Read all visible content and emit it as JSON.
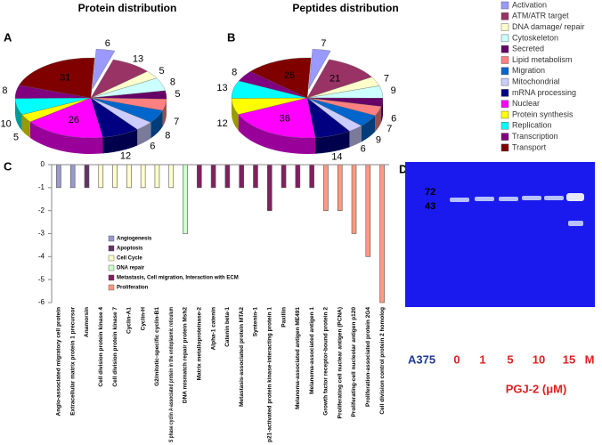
{
  "panels": {
    "a": "A",
    "b": "B",
    "c": "C",
    "d": "D"
  },
  "chart_data": [
    {
      "type": "pie",
      "title": "Protein distribution",
      "categories": [
        "Activation",
        "ATM/ATR target",
        "DNA damage/ repair",
        "Cytoskeleton",
        "Secreted",
        "Lipid metabolism",
        "Migration",
        "Mitochondrial",
        "mRNA processing",
        "Nuclear",
        "Protein synthesis",
        "Replication",
        "Transcription",
        "Transport"
      ],
      "values": [
        6,
        13,
        5,
        8,
        5,
        7,
        8,
        6,
        12,
        26,
        5,
        10,
        8,
        31
      ],
      "colors": [
        "#9999ff",
        "#993366",
        "#ffffcc",
        "#ccffff",
        "#660066",
        "#ff8080",
        "#0066cc",
        "#ccccff",
        "#000080",
        "#ff00ff",
        "#ffff00",
        "#00ffff",
        "#800080",
        "#800000"
      ]
    },
    {
      "type": "pie",
      "title": "Peptides distribution",
      "categories": [
        "Activation",
        "ATM/ATR target",
        "DNA damage/ repair",
        "Cytoskeleton",
        "Secreted",
        "Lipid metabolism",
        "Migration",
        "Mitochondrial",
        "mRNA processing",
        "Nuclear",
        "Protein synthesis",
        "Replication",
        "Transcription",
        "Transport"
      ],
      "values": [
        7,
        21,
        7,
        9,
        6,
        7,
        9,
        6,
        14,
        36,
        12,
        13,
        8,
        26
      ],
      "colors": [
        "#9999ff",
        "#993366",
        "#ffffcc",
        "#ccffff",
        "#660066",
        "#ff8080",
        "#0066cc",
        "#ccccff",
        "#000080",
        "#ff00ff",
        "#ffff00",
        "#00ffff",
        "#800080",
        "#800000"
      ],
      "legend": "right"
    },
    {
      "type": "bar",
      "categories": [
        "Angio-associated migratory cell protein",
        "Extracellular matrix protein 1 precursor",
        "Anamorsin",
        "Cell division protein kinase 4",
        "Cell division protein kinase 7",
        "Cyclin-A1",
        "Cyclin-H",
        "G2/mitotic-specific cyclin-B1",
        "S phase cyclin A-associated protein in the endoplasmic reticulum",
        "DNA mismatch repair protein Msh2",
        "Matrix metalloproteinase-2",
        "Alpha-1 catenin",
        "Catenin beta-1",
        "Metastasis-associated protein MTA2",
        "Syntenin-1",
        "p21-activated protein kinase-interacting protein 1",
        "Paxillin",
        "Melanoma-associated antigen ME491",
        "Melanoma-associated antigen 1",
        "Growth factor receptor-bound protein 2",
        "Proliferating cell nuclear antigen (PCNA)",
        "Proliferating-cell nucleolar antigen p120",
        "Proliferation-associated protein 2G4",
        "Cell division control protein 2 homolog"
      ],
      "values": [
        -1,
        -1,
        -1,
        -1,
        -1,
        -1,
        -1,
        -1,
        -1,
        -3,
        -1,
        -1,
        -1,
        -1,
        -1,
        -2,
        -1,
        -1,
        -1,
        -2,
        -2,
        -3,
        -4,
        -6
      ],
      "group": [
        0,
        0,
        1,
        2,
        2,
        2,
        2,
        2,
        2,
        3,
        4,
        4,
        4,
        4,
        4,
        4,
        4,
        4,
        4,
        5,
        5,
        5,
        5,
        5
      ],
      "groups": [
        {
          "name": "Angiogenesis",
          "color": "#9999cc"
        },
        {
          "name": "Apoptosis",
          "color": "#663366"
        },
        {
          "name": "Cell Cycle",
          "color": "#ffffcc"
        },
        {
          "name": "DNA repair",
          "color": "#ccffcc"
        },
        {
          "name": "Metastasis, Cell migration, Interaction with ECM",
          "color": "#802060"
        },
        {
          "name": "Proliferation",
          "color": "#ff9980"
        }
      ],
      "ylim": [
        -6,
        0
      ],
      "yticks": [
        0,
        -1,
        -2,
        -3,
        -4,
        -5,
        -6
      ]
    }
  ],
  "gel": {
    "markers": [
      "72",
      "43"
    ],
    "lanes": [
      "A375",
      "0",
      "1",
      "5",
      "10",
      "15",
      "M"
    ],
    "treatment": "PGJ-2 (μM)"
  }
}
